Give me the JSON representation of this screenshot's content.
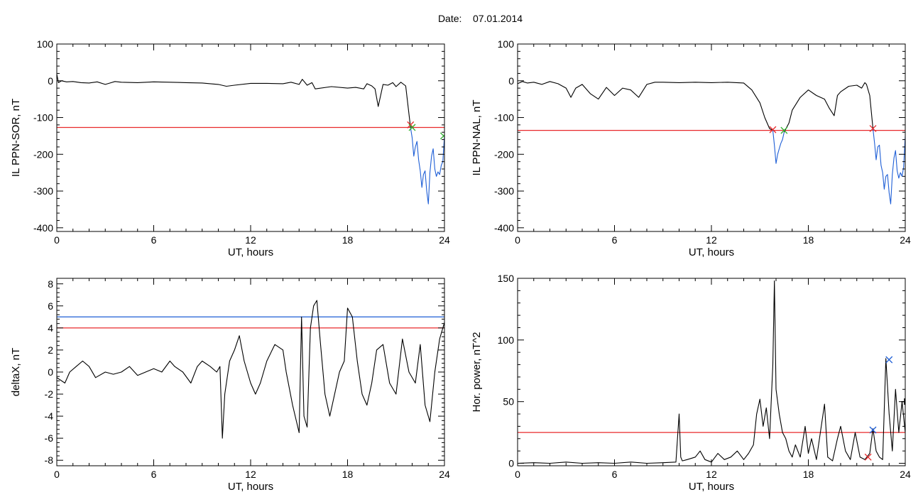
{
  "page": {
    "date_label": "Date:",
    "date_value": "07.01.2014"
  },
  "chart_data": [
    {
      "id": "tl",
      "type": "line",
      "xlabel": "UT, hours",
      "ylabel": "IL PPN-SOR, nT",
      "xlim": [
        0,
        24
      ],
      "ylim": [
        -410,
        100
      ],
      "xticks": [
        0,
        6,
        12,
        18,
        24
      ],
      "yticks": [
        100,
        0,
        -100,
        -200,
        -300,
        -400
      ],
      "thresholds": [
        {
          "value": -127,
          "color": "#e8292b"
        }
      ],
      "series": [
        {
          "color": "#000000",
          "x": [
            0,
            0.1,
            0.3,
            0.6,
            1,
            1.5,
            2,
            2.5,
            3,
            3.3,
            3.6,
            4,
            5,
            6,
            7,
            8,
            9,
            10,
            10.5,
            11,
            12,
            13,
            14,
            14.5,
            15,
            15.2,
            15.5,
            15.8,
            16,
            17,
            18,
            18.5,
            19,
            19.2,
            19.5,
            19.7,
            19.9,
            20.2,
            20.5,
            20.8,
            21,
            21.3,
            21.6,
            21.9
          ],
          "y": [
            18,
            -5,
            0,
            -3,
            -2,
            -5,
            -6,
            -3,
            -10,
            -6,
            -2,
            -4,
            -5,
            -3,
            -4,
            -5,
            -6,
            -10,
            -15,
            -12,
            -7,
            -7,
            -8,
            -4,
            -10,
            4,
            -12,
            -5,
            -22,
            -16,
            -20,
            -18,
            -22,
            -8,
            -14,
            -22,
            -70,
            -10,
            -12,
            -5,
            -16,
            -4,
            -14,
            -127
          ]
        },
        {
          "color": "#1f5fd6",
          "x": [
            21.9,
            22.0,
            22.1,
            22.2,
            22.3,
            22.4,
            22.5,
            22.6,
            22.7,
            22.8,
            22.9,
            23.0,
            23.1,
            23.2,
            23.3,
            23.4,
            23.5,
            23.6,
            23.7,
            23.8,
            23.9,
            24.0
          ],
          "y": [
            -127,
            -155,
            -205,
            -180,
            -165,
            -215,
            -245,
            -290,
            -255,
            -245,
            -300,
            -335,
            -250,
            -205,
            -185,
            -240,
            -260,
            -248,
            -255,
            -230,
            -220,
            -150
          ]
        }
      ],
      "markers": [
        {
          "x": 21.9,
          "y": -120,
          "symbol": "x",
          "color": "#e8292b"
        },
        {
          "x": 22.0,
          "y": -127,
          "symbol": "x",
          "color": "#2faf2f"
        },
        {
          "x": 23.95,
          "y": -150,
          "symbol": "x",
          "color": "#2faf2f"
        }
      ]
    },
    {
      "id": "tr",
      "type": "line",
      "xlabel": "UT, hours",
      "ylabel": "IL PPN-NAL, nT",
      "xlim": [
        0,
        24
      ],
      "ylim": [
        -410,
        100
      ],
      "xticks": [
        0,
        6,
        12,
        18,
        24
      ],
      "yticks": [
        100,
        0,
        -100,
        -200,
        -300,
        -400
      ],
      "thresholds": [
        {
          "value": -135,
          "color": "#e8292b"
        }
      ],
      "series": [
        {
          "color": "#000000",
          "x": [
            0,
            0.3,
            0.6,
            1,
            1.5,
            2,
            2.5,
            3,
            3.3,
            3.6,
            4,
            4.5,
            5,
            5.5,
            6,
            6.5,
            7,
            7.5,
            8,
            8.5,
            9,
            10,
            11,
            12,
            13,
            14,
            14.5,
            15,
            15.3,
            15.6,
            15.8
          ],
          "y": [
            -8,
            -2,
            -6,
            -4,
            -10,
            -2,
            -8,
            -20,
            -45,
            -20,
            -10,
            -35,
            -50,
            -18,
            -40,
            -20,
            -25,
            -45,
            -10,
            -4,
            -4,
            -5,
            -4,
            -5,
            -4,
            -6,
            -25,
            -60,
            -100,
            -130,
            -135
          ]
        },
        {
          "color": "#1f5fd6",
          "x": [
            15.8,
            15.9,
            16.0,
            16.1,
            16.2,
            16.3,
            16.4,
            16.5
          ],
          "y": [
            -135,
            -175,
            -225,
            -200,
            -185,
            -170,
            -160,
            -140
          ]
        },
        {
          "color": "#000000",
          "x": [
            16.5,
            16.8,
            17.0,
            17.5,
            18.0,
            18.5,
            19.0,
            19.3,
            19.6,
            19.8,
            20,
            20.5,
            21,
            21.3,
            21.5,
            21.6,
            21.8,
            22.0
          ],
          "y": [
            -140,
            -115,
            -80,
            -45,
            -25,
            -40,
            -50,
            -75,
            -95,
            -40,
            -30,
            -15,
            -12,
            -20,
            -5,
            -10,
            -40,
            -130
          ]
        },
        {
          "color": "#1f5fd6",
          "x": [
            22.0,
            22.1,
            22.2,
            22.3,
            22.4,
            22.5,
            22.6,
            22.7,
            22.8,
            22.9,
            23.0,
            23.1,
            23.2,
            23.3,
            23.4,
            23.5,
            23.6,
            23.7,
            23.8,
            23.9,
            24.0
          ],
          "y": [
            -130,
            -170,
            -215,
            -180,
            -175,
            -230,
            -250,
            -295,
            -260,
            -255,
            -305,
            -335,
            -255,
            -210,
            -190,
            -245,
            -265,
            -250,
            -260,
            -235,
            -150
          ]
        }
      ],
      "markers": [
        {
          "x": 15.8,
          "y": -133,
          "symbol": "x",
          "color": "#e8292b"
        },
        {
          "x": 16.5,
          "y": -135,
          "symbol": "x",
          "color": "#2faf2f"
        },
        {
          "x": 22.0,
          "y": -130,
          "symbol": "x",
          "color": "#e8292b"
        }
      ]
    },
    {
      "id": "bl",
      "type": "line",
      "xlabel": "UT, hours",
      "ylabel": "deltaX, nT",
      "xlim": [
        0,
        24
      ],
      "ylim": [
        -8.5,
        8.5
      ],
      "xticks": [
        0,
        6,
        12,
        18,
        24
      ],
      "yticks": [
        8,
        6,
        4,
        2,
        0,
        -2,
        -4,
        -6,
        -8
      ],
      "thresholds": [
        {
          "value": 5,
          "color": "#1f5fd6"
        },
        {
          "value": 4,
          "color": "#e8292b"
        }
      ],
      "series": [
        {
          "color": "#000000",
          "x": [
            0,
            0.5,
            0.8,
            1.2,
            1.6,
            2.0,
            2.4,
            3.0,
            3.5,
            4,
            4.5,
            5,
            5.5,
            6,
            6.5,
            7,
            7.3,
            7.8,
            8.3,
            8.7,
            9,
            9.5,
            9.9,
            10.1,
            10.25,
            10.4,
            10.7,
            11.0,
            11.3,
            11.6,
            12.0,
            12.3,
            12.6,
            13.0,
            13.5,
            14.0,
            14.2,
            14.6,
            15.0,
            15.15,
            15.3,
            15.5,
            15.7,
            15.9,
            16.1,
            16.3,
            16.6,
            16.9,
            17.2,
            17.5,
            17.8,
            18.0,
            18.3,
            18.6,
            18.9,
            19.2,
            19.5,
            19.8,
            20.2,
            20.6,
            21.0,
            21.4,
            21.8,
            22.2,
            22.5,
            22.8,
            23.1,
            23.4,
            23.7,
            24.0
          ],
          "y": [
            -0.5,
            -1,
            0,
            0.5,
            1,
            0.5,
            -0.5,
            0,
            -0.2,
            0,
            0.5,
            -0.3,
            0,
            0.3,
            0,
            1,
            0.5,
            0,
            -1,
            0.5,
            1,
            0.5,
            0,
            0.5,
            -6,
            -2,
            1,
            2,
            3.3,
            1,
            -1,
            -2,
            -1,
            1,
            2.5,
            2,
            0,
            -3,
            -5.5,
            5,
            -4,
            -5,
            4,
            6,
            6.5,
            3,
            -2,
            -4,
            -2,
            0,
            1,
            5.8,
            5,
            1,
            -2,
            -3,
            -1,
            2,
            2.5,
            -1,
            -2,
            3,
            0,
            -1,
            2.5,
            -3,
            -4.5,
            0,
            3,
            4.5
          ]
        }
      ],
      "markers": []
    },
    {
      "id": "br",
      "type": "line",
      "xlabel": "UT, hours",
      "ylabel": "Hor. power, nT^2",
      "xlim": [
        0,
        24
      ],
      "ylim": [
        -2,
        150
      ],
      "xticks": [
        0,
        6,
        12,
        18,
        24
      ],
      "yticks": [
        150,
        100,
        50,
        0
      ],
      "thresholds": [
        {
          "value": 25,
          "color": "#e8292b"
        }
      ],
      "series": [
        {
          "color": "#000000",
          "x": [
            0,
            1,
            2,
            3,
            4,
            5,
            6,
            7,
            8,
            9,
            9.8,
            10,
            10.1,
            10.2,
            10.5,
            11,
            11.3,
            11.6,
            12,
            12.4,
            12.8,
            13.2,
            13.6,
            14,
            14.3,
            14.6,
            14.8,
            15.0,
            15.2,
            15.4,
            15.6,
            15.8,
            15.9,
            16.0,
            16.2,
            16.4,
            16.6,
            16.8,
            17.0,
            17.2,
            17.5,
            17.8,
            18.0,
            18.2,
            18.5,
            18.8,
            19.0,
            19.2,
            19.5,
            19.8,
            20.0,
            20.3,
            20.6,
            20.9,
            21.2,
            21.5,
            21.8,
            22.0,
            22.2,
            22.4,
            22.6,
            22.8,
            23.0,
            23.2,
            23.4,
            23.6,
            23.8,
            24.0
          ],
          "y": [
            0,
            0.5,
            0,
            1,
            0,
            0.5,
            0,
            1,
            0,
            0.5,
            1,
            40,
            5,
            2,
            3,
            5,
            10,
            3,
            1,
            8,
            3,
            5,
            10,
            3,
            8,
            15,
            40,
            52,
            30,
            45,
            20,
            80,
            148,
            60,
            40,
            25,
            20,
            10,
            5,
            15,
            5,
            30,
            8,
            20,
            3,
            30,
            48,
            5,
            2,
            20,
            30,
            10,
            3,
            25,
            5,
            3,
            8,
            28,
            10,
            5,
            3,
            85,
            40,
            10,
            60,
            25,
            50,
            25
          ]
        }
      ],
      "markers": [
        {
          "x": 21.7,
          "y": 5,
          "symbol": "x",
          "color": "#e8292b"
        },
        {
          "x": 22.0,
          "y": 27,
          "symbol": "x",
          "color": "#1f5fd6"
        },
        {
          "x": 23.0,
          "y": 84,
          "symbol": "x",
          "color": "#1f5fd6"
        },
        {
          "x": 23.95,
          "y": 50,
          "symbol": "+",
          "color": "#000000"
        }
      ]
    }
  ]
}
